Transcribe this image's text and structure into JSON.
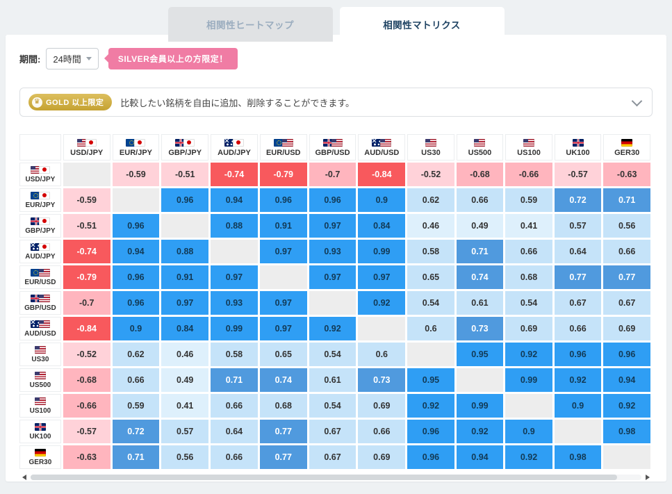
{
  "tabs": [
    {
      "label": "相関性ヒートマップ",
      "active": false
    },
    {
      "label": "相関性マトリクス",
      "active": true
    }
  ],
  "period": {
    "label": "期間:",
    "value": "24時間"
  },
  "silver_badge": "SILVER会員以上の方限定！",
  "gold_banner": {
    "badge_label": "GOLD 以上限定",
    "message": "比較したい銘柄を自由に追加、削除することができます。"
  },
  "icons": {
    "crown": "♛"
  },
  "chart_data": {
    "type": "heatmap",
    "title": "相関性マトリクス",
    "symbols": [
      {
        "label": "USD/JPY",
        "flags": [
          "us",
          "jp"
        ]
      },
      {
        "label": "EUR/JPY",
        "flags": [
          "eu",
          "jp"
        ]
      },
      {
        "label": "GBP/JPY",
        "flags": [
          "gb",
          "jp"
        ]
      },
      {
        "label": "AUD/JPY",
        "flags": [
          "au",
          "jp"
        ]
      },
      {
        "label": "EUR/USD",
        "flags": [
          "eu",
          "us"
        ]
      },
      {
        "label": "GBP/USD",
        "flags": [
          "gb",
          "us"
        ]
      },
      {
        "label": "AUD/USD",
        "flags": [
          "au",
          "us"
        ]
      },
      {
        "label": "US30",
        "flags": [
          "us"
        ]
      },
      {
        "label": "US500",
        "flags": [
          "us"
        ]
      },
      {
        "label": "US100",
        "flags": [
          "us"
        ]
      },
      {
        "label": "UK100",
        "flags": [
          "gb"
        ]
      },
      {
        "label": "GER30",
        "flags": [
          "de"
        ]
      }
    ],
    "matrix": [
      [
        null,
        -0.59,
        -0.51,
        -0.74,
        -0.79,
        -0.7,
        -0.84,
        -0.52,
        -0.68,
        -0.66,
        -0.57,
        -0.63
      ],
      [
        -0.59,
        null,
        0.96,
        0.94,
        0.96,
        0.96,
        0.9,
        0.62,
        0.66,
        0.59,
        0.72,
        0.71
      ],
      [
        -0.51,
        0.96,
        null,
        0.88,
        0.91,
        0.97,
        0.84,
        0.46,
        0.49,
        0.41,
        0.57,
        0.56
      ],
      [
        -0.74,
        0.94,
        0.88,
        null,
        0.97,
        0.93,
        0.99,
        0.58,
        0.71,
        0.66,
        0.64,
        0.66
      ],
      [
        -0.79,
        0.96,
        0.91,
        0.97,
        null,
        0.97,
        0.97,
        0.65,
        0.74,
        0.68,
        0.77,
        0.77
      ],
      [
        -0.7,
        0.96,
        0.97,
        0.93,
        0.97,
        null,
        0.92,
        0.54,
        0.61,
        0.54,
        0.67,
        0.67
      ],
      [
        -0.84,
        0.9,
        0.84,
        0.99,
        0.97,
        0.92,
        null,
        0.6,
        0.73,
        0.69,
        0.66,
        0.69
      ],
      [
        -0.52,
        0.62,
        0.46,
        0.58,
        0.65,
        0.54,
        0.6,
        null,
        0.95,
        0.92,
        0.96,
        0.96
      ],
      [
        -0.68,
        0.66,
        0.49,
        0.71,
        0.74,
        0.61,
        0.73,
        0.95,
        null,
        0.99,
        0.92,
        0.94
      ],
      [
        -0.66,
        0.59,
        0.41,
        0.66,
        0.68,
        0.54,
        0.69,
        0.92,
        0.99,
        null,
        0.9,
        0.92
      ],
      [
        -0.57,
        0.72,
        0.57,
        0.64,
        0.77,
        0.67,
        0.66,
        0.96,
        0.92,
        0.9,
        null,
        0.98
      ],
      [
        -0.63,
        0.71,
        0.56,
        0.66,
        0.77,
        0.67,
        0.69,
        0.96,
        0.94,
        0.92,
        0.98,
        null
      ]
    ],
    "color_scale": {
      "diagonal": "#ededed",
      "positive": [
        {
          "min": 0.8,
          "bg": "#2f9ef4",
          "fg": "#123a56"
        },
        {
          "min": 0.7,
          "bg": "#509ade",
          "fg": "#ffffff"
        },
        {
          "min": 0.5,
          "bg": "#c5e3f9",
          "fg": "#333333"
        },
        {
          "min": 0.0,
          "bg": "#def0fc",
          "fg": "#333333"
        }
      ],
      "negative": [
        {
          "min": 0.72,
          "bg": "#f8595d",
          "fg": "#ffffff"
        },
        {
          "min": 0.6,
          "bg": "#ffb5be",
          "fg": "#333333"
        },
        {
          "min": 0.0,
          "bg": "#ffd2d9",
          "fg": "#333333"
        }
      ]
    }
  },
  "colors": {
    "page_bg": "#eef1f3",
    "tab_active_text": "#1f4363",
    "tab_inactive_bg": "#e0e2e4",
    "silver_pink": "#f07ca4",
    "gold": "#c5a231"
  }
}
